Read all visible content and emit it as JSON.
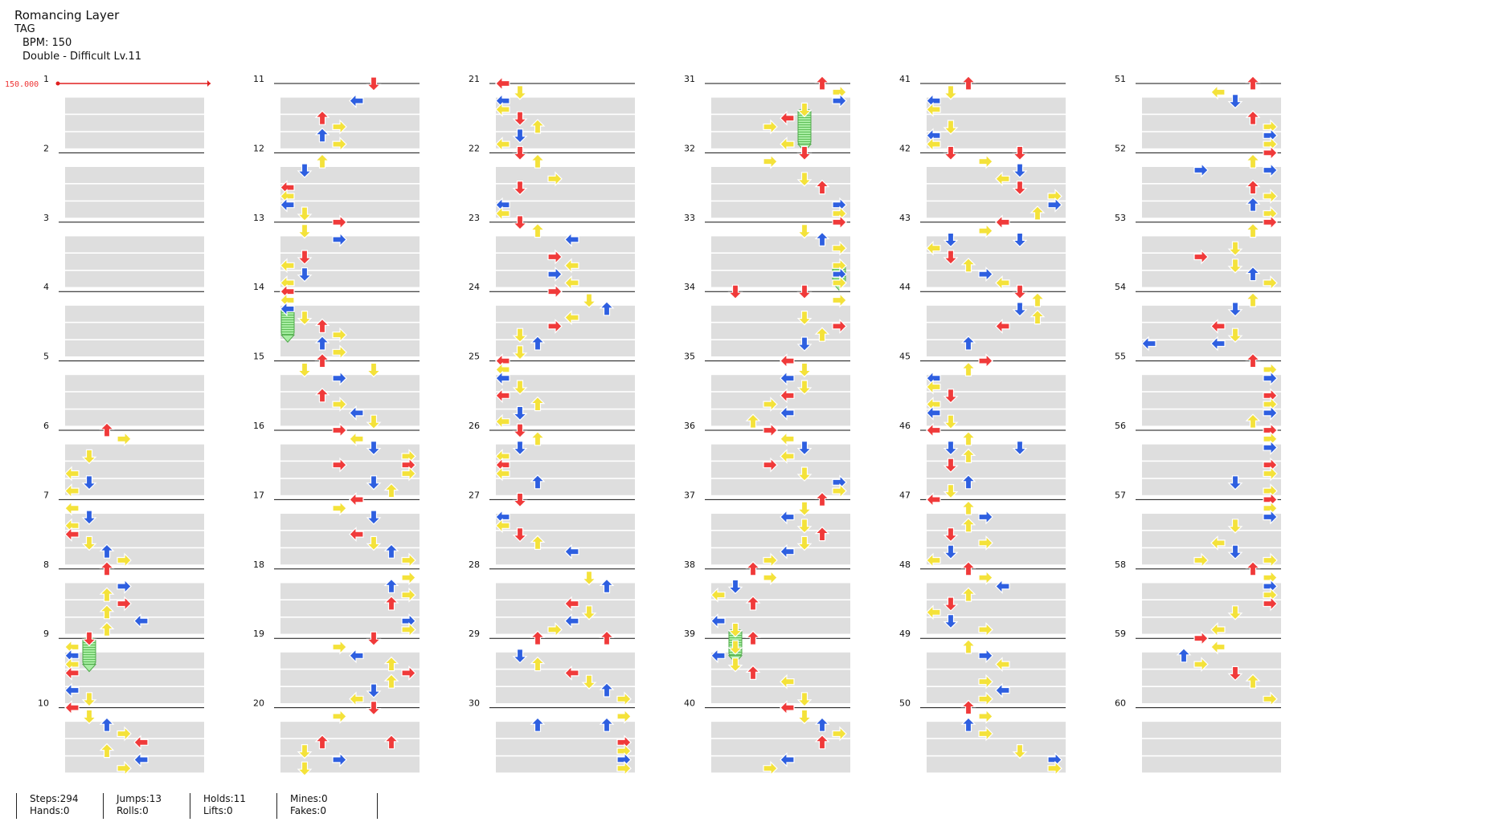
{
  "song": {
    "title": "Romancing Layer",
    "artist": "TAG",
    "bpm_label": "BPM: 150",
    "difficulty_label": "Double - Difficult Lv.11"
  },
  "bpm_marker": "150.000",
  "colors": {
    "red_arrow": "#f03a3a",
    "blue_arrow": "#2e5fe0",
    "yellow_arrow": "#f4e23a",
    "hold_green": "#8fe08a",
    "bpm_line": "#e02020",
    "beat_shade": "#dedede"
  },
  "measures": [
    "1",
    "2",
    "3",
    "4",
    "5",
    "6",
    "7",
    "8",
    "9",
    "10",
    "11",
    "12",
    "13",
    "14",
    "15",
    "16",
    "17",
    "18",
    "19",
    "20",
    "21",
    "22",
    "23",
    "24",
    "25",
    "26",
    "27",
    "28",
    "29",
    "30",
    "31",
    "32",
    "33",
    "34",
    "35",
    "36",
    "37",
    "38",
    "39",
    "40",
    "41",
    "42",
    "43",
    "44",
    "45",
    "46",
    "47",
    "48",
    "49",
    "50",
    "51",
    "52",
    "53",
    "54",
    "55",
    "56",
    "57",
    "58",
    "59",
    "60"
  ],
  "stats": {
    "steps": "Steps:294",
    "hands": "Hands:0",
    "jumps": "Jumps:13",
    "rolls": "Rolls:0",
    "holds": "Holds:11",
    "lifts": "Lifts:0",
    "mines": "Mines:0",
    "fakes": "Fakes:0"
  }
}
